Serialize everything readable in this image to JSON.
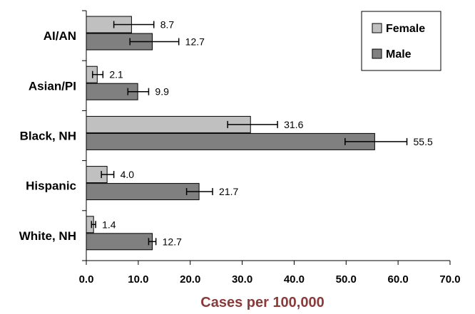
{
  "chart_data": {
    "type": "bar",
    "orientation": "horizontal",
    "categories": [
      "AI/AN",
      "Asian/PI",
      "Black, NH",
      "Hispanic",
      "White, NH"
    ],
    "series": [
      {
        "name": "Female",
        "color": "#c0c0c0",
        "values": [
          8.7,
          2.1,
          31.6,
          4.0,
          1.4
        ],
        "value_labels": [
          "8.7",
          "2.1",
          "31.6",
          "4.0",
          "1.4"
        ],
        "error_low": [
          5.3,
          1.2,
          27.2,
          2.9,
          1.0
        ],
        "error_high": [
          13.0,
          3.2,
          36.8,
          5.3,
          1.8
        ]
      },
      {
        "name": "Male",
        "color": "#808080",
        "values": [
          12.7,
          9.9,
          55.5,
          21.7,
          12.7
        ],
        "value_labels": [
          "12.7",
          "9.9",
          "55.5",
          "21.7",
          "12.7"
        ],
        "error_low": [
          8.4,
          8.0,
          49.8,
          19.3,
          12.0
        ],
        "error_high": [
          17.8,
          12.0,
          61.7,
          24.3,
          13.4
        ]
      }
    ],
    "xlabel": "Cases per 100,000",
    "xlabel_color": "#8b3a3a",
    "xlim": [
      0,
      70
    ],
    "xticks": [
      0,
      10,
      20,
      30,
      40,
      50,
      60,
      70
    ],
    "xtick_labels": [
      "0.0",
      "10.0",
      "20.0",
      "30.0",
      "40.0",
      "50.0",
      "60.0",
      "70.0"
    ],
    "grid": false,
    "legend_position": "top-right",
    "error_bars": true
  }
}
